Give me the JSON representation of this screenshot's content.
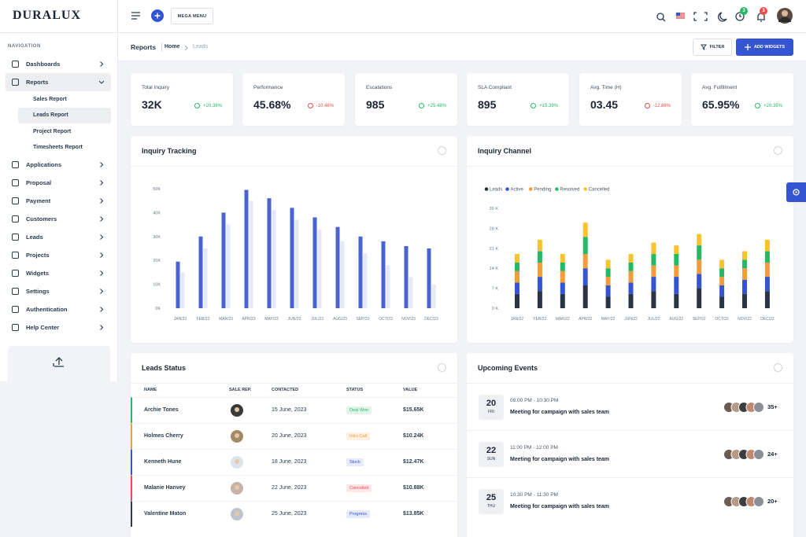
{
  "brand": "DURALUX",
  "header": {
    "mega_menu": "MEGA MENU",
    "badges": [
      3,
      3
    ]
  },
  "sidebar": {
    "label": "NAVIGATION",
    "items": [
      {
        "label": "Dashboards"
      },
      {
        "label": "Reports",
        "children": [
          "Sales Report",
          "Leads Report",
          "Project Report",
          "Timesheets Report"
        ]
      },
      {
        "label": "Applications"
      },
      {
        "label": "Proposal"
      },
      {
        "label": "Payment"
      },
      {
        "label": "Customers"
      },
      {
        "label": "Leads"
      },
      {
        "label": "Projects"
      },
      {
        "label": "Widgets"
      },
      {
        "label": "Settings"
      },
      {
        "label": "Authentication"
      },
      {
        "label": "Help Center"
      }
    ]
  },
  "breadcrumb": {
    "page": "Reports",
    "items": [
      "Home",
      "Leads"
    ]
  },
  "actions": {
    "filter": "FILTER",
    "add_widgets": "ADD WIDGETS"
  },
  "stats": [
    {
      "label": "Total Inquiry",
      "value": "32K",
      "change": "+20.36%"
    },
    {
      "label": "Performance",
      "value": "45.68%",
      "change": "-10.46%"
    },
    {
      "label": "Escalations",
      "value": "985",
      "change": "+25.48%"
    },
    {
      "label": "SLA Compliant",
      "value": "895",
      "change": "+15.39%"
    },
    {
      "label": "Avg. Time (H)",
      "value": "03.45",
      "change": "-12.86%"
    },
    {
      "label": "Avg. Fulfillment",
      "value": "65.95%",
      "change": "+20.35%"
    }
  ],
  "inquiry_tracking": {
    "type": "bar",
    "title": "Inquiry Tracking",
    "categories": [
      "JAN/23",
      "FEB/23",
      "MAR/23",
      "APR/23",
      "MAY/23",
      "JUN/23",
      "JUL/23",
      "AUG/23",
      "SEP/23",
      "OCT/23",
      "NOV/23",
      "DEC/23"
    ],
    "series": [
      {
        "color": "#4a63d3",
        "values": [
          19500,
          30000,
          40000,
          49500,
          46000,
          42000,
          38000,
          34000,
          30000,
          28000,
          26000,
          25000
        ]
      },
      {
        "color": "#e5e8f6",
        "values": [
          15000,
          25000,
          35000,
          45000,
          41000,
          37000,
          33000,
          28000,
          23000,
          18000,
          13000,
          10000
        ]
      }
    ],
    "ylim": [
      0,
      50000
    ],
    "yticks": [
      {
        "value": 0,
        "label": "0K"
      },
      {
        "value": 10000,
        "label": "10K"
      },
      {
        "value": 20000,
        "label": "20K"
      },
      {
        "value": 30000,
        "label": "30K"
      },
      {
        "value": 40000,
        "label": "40K"
      },
      {
        "value": 50000,
        "label": "50K"
      }
    ]
  },
  "inquiry_channel": {
    "type": "stacked_bar",
    "title": "Inquiry Channel",
    "categories": [
      "JAN/22",
      "FEB/22",
      "MAR/22",
      "APR/22",
      "MAY/22",
      "JUN/22",
      "JUL/22",
      "AUG/22",
      "SEP/22",
      "OCT/22",
      "NOV/22",
      "DEC/22"
    ],
    "series": [
      {
        "name": "Leads",
        "color": "#2b3445",
        "values": [
          5000,
          6000,
          5000,
          8000,
          4000,
          5000,
          6000,
          5000,
          7000,
          4000,
          5000,
          6000
        ]
      },
      {
        "name": "Active",
        "color": "#3454d1",
        "values": [
          4000,
          5000,
          4000,
          6000,
          4000,
          4000,
          5000,
          6000,
          5000,
          4000,
          5000,
          5000
        ]
      },
      {
        "name": "Pending",
        "color": "#f39c3c",
        "values": [
          4000,
          5000,
          4000,
          5000,
          3000,
          4000,
          4000,
          4000,
          5000,
          3000,
          4000,
          5000
        ]
      },
      {
        "name": "Resolved",
        "color": "#25b865",
        "values": [
          3000,
          4000,
          3000,
          6000,
          3000,
          3000,
          4000,
          4000,
          5000,
          3000,
          3000,
          4000
        ]
      },
      {
        "name": "Cancelled",
        "color": "#f9c22e",
        "values": [
          3000,
          4000,
          3000,
          5000,
          3000,
          3000,
          4000,
          3000,
          4000,
          3000,
          3000,
          4000
        ]
      }
    ],
    "ylim": [
      0,
      35000
    ],
    "yticks": [
      {
        "value": 0,
        "label": "0 K"
      },
      {
        "value": 7000,
        "label": "7 K"
      },
      {
        "value": 14000,
        "label": "14 K"
      },
      {
        "value": 21000,
        "label": "21 K"
      },
      {
        "value": 28000,
        "label": "28 K"
      },
      {
        "value": 35000,
        "label": "35 K"
      }
    ]
  },
  "leads_status": {
    "title": "Leads Status",
    "columns": [
      "NAME",
      "SALE REP.",
      "CONTACTED",
      "STATUS",
      "VALUE"
    ],
    "rows": [
      {
        "name": "Archie Tones",
        "contacted": "15 June, 2023",
        "status": "Deal Won",
        "value": "$15.65K"
      },
      {
        "name": "Holmes Cherry",
        "contacted": "20 June, 2023",
        "status": "Intro Call",
        "value": "$10.24K"
      },
      {
        "name": "Kenneth Hune",
        "contacted": "18 June, 2023",
        "status": "Stuck",
        "value": "$12.47K"
      },
      {
        "name": "Malanie Hanvey",
        "contacted": "22 June, 2023",
        "status": "Cancelled",
        "value": "$10.88K"
      },
      {
        "name": "Valentine Maton",
        "contacted": "25 June, 2023",
        "status": "Progress",
        "value": "$13.85K"
      }
    ]
  },
  "upcoming_events": {
    "title": "Upcoming Events",
    "events": [
      {
        "day": 20,
        "weekday": "FRI",
        "time": "09:00 PM - 10:30 PM",
        "title": "Meeting for campaign with sales team",
        "attendees": "35+"
      },
      {
        "day": 22,
        "weekday": "SUN",
        "time": "11:00 PM - 12:00 PM",
        "title": "Meeting for campaign with sales team",
        "attendees": "24+"
      },
      {
        "day": 25,
        "weekday": "THU",
        "time": "10:30 PM - 11:30 PM",
        "title": "Meeting for campaign with sales team",
        "attendees": "20+"
      }
    ]
  }
}
